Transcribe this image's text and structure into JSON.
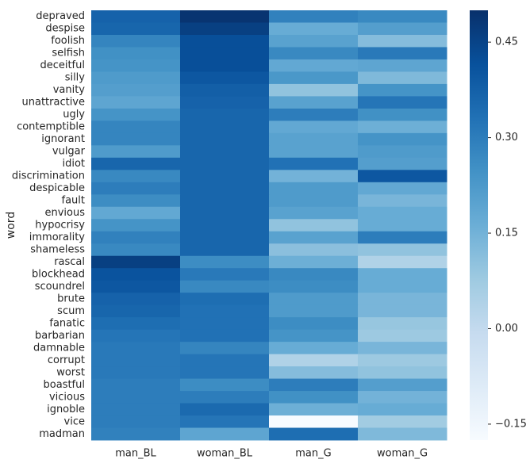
{
  "chart_data": {
    "type": "heatmap",
    "y_label": "word",
    "colormap": "Blues",
    "x_categories": [
      "man_BL",
      "woman_BL",
      "man_G",
      "woman_G"
    ],
    "y_categories": [
      "depraved",
      "despise",
      "foolish",
      "selfish",
      "deceitful",
      "silly",
      "vanity",
      "unattractive",
      "ugly",
      "contemptible",
      "ignorant",
      "vulgar",
      "idiot",
      "discrimination",
      "despicable",
      "fault",
      "envious",
      "hypocrisy",
      "immorality",
      "shameless",
      "rascal",
      "blockhead",
      "scoundrel",
      "brute",
      "scum",
      "fanatic",
      "barbarian",
      "damnable",
      "corrupt",
      "worst",
      "boastful",
      "vicious",
      "ignoble",
      "vice",
      "madman"
    ],
    "values": [
      [
        0.37,
        0.49,
        0.29,
        0.27
      ],
      [
        0.36,
        0.46,
        0.17,
        0.21
      ],
      [
        0.28,
        0.42,
        0.2,
        0.12
      ],
      [
        0.25,
        0.42,
        0.27,
        0.31
      ],
      [
        0.24,
        0.42,
        0.18,
        0.19
      ],
      [
        0.22,
        0.4,
        0.23,
        0.13
      ],
      [
        0.21,
        0.38,
        0.1,
        0.24
      ],
      [
        0.19,
        0.37,
        0.2,
        0.32
      ],
      [
        0.24,
        0.36,
        0.3,
        0.25
      ],
      [
        0.28,
        0.36,
        0.18,
        0.16
      ],
      [
        0.28,
        0.36,
        0.2,
        0.24
      ],
      [
        0.22,
        0.36,
        0.2,
        0.22
      ],
      [
        0.36,
        0.36,
        0.33,
        0.21
      ],
      [
        0.27,
        0.36,
        0.15,
        0.4
      ],
      [
        0.3,
        0.36,
        0.22,
        0.18
      ],
      [
        0.26,
        0.36,
        0.22,
        0.14
      ],
      [
        0.18,
        0.36,
        0.2,
        0.17
      ],
      [
        0.24,
        0.36,
        0.1,
        0.17
      ],
      [
        0.29,
        0.36,
        0.2,
        0.3
      ],
      [
        0.27,
        0.36,
        0.11,
        0.1
      ],
      [
        0.46,
        0.26,
        0.16,
        0.04
      ],
      [
        0.41,
        0.31,
        0.27,
        0.17
      ],
      [
        0.4,
        0.27,
        0.26,
        0.17
      ],
      [
        0.37,
        0.34,
        0.22,
        0.14
      ],
      [
        0.36,
        0.33,
        0.22,
        0.14
      ],
      [
        0.34,
        0.33,
        0.26,
        0.09
      ],
      [
        0.32,
        0.33,
        0.24,
        0.08
      ],
      [
        0.31,
        0.28,
        0.17,
        0.14
      ],
      [
        0.31,
        0.32,
        0.04,
        0.08
      ],
      [
        0.31,
        0.32,
        0.12,
        0.1
      ],
      [
        0.3,
        0.26,
        0.3,
        0.21
      ],
      [
        0.3,
        0.3,
        0.25,
        0.15
      ],
      [
        0.3,
        0.35,
        0.16,
        0.17
      ],
      [
        0.3,
        0.32,
        -0.18,
        0.07
      ],
      [
        0.29,
        0.19,
        0.34,
        0.13
      ]
    ],
    "clim": [
      -0.175,
      0.5
    ],
    "cticks": [
      {
        "value": -0.15,
        "label": "−0.15"
      },
      {
        "value": 0,
        "label": "0.00"
      },
      {
        "value": 0.15,
        "label": "0.15"
      },
      {
        "value": 0.3,
        "label": "0.30"
      },
      {
        "value": 0.45,
        "label": "0.45"
      }
    ]
  }
}
